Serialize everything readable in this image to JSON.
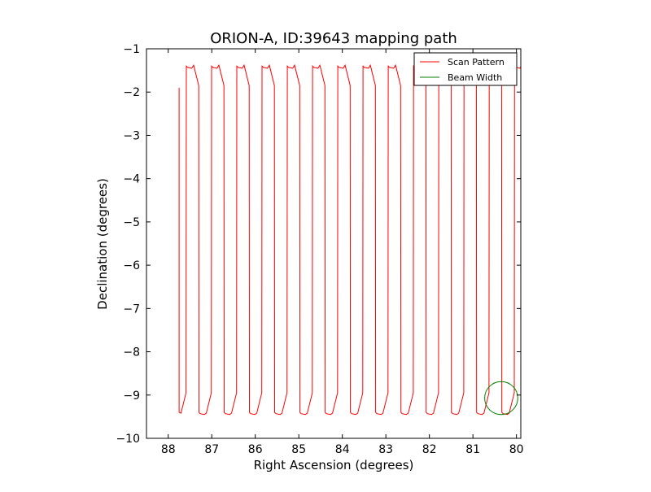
{
  "chart_data": {
    "type": "line",
    "title": "ORION-A, ID:39643 mapping path",
    "xlabel": "Right Ascension (degrees)",
    "ylabel": "Declination (degrees)",
    "xlim": [
      88.5,
      79.9
    ],
    "ylim": [
      -10,
      -1
    ],
    "x_ticks": [
      88,
      87,
      86,
      85,
      84,
      83,
      82,
      81,
      80
    ],
    "y_ticks": [
      -1,
      -2,
      -3,
      -4,
      -5,
      -6,
      -7,
      -8,
      -9,
      -10
    ],
    "x_tick_labels": [
      "88",
      "87",
      "86",
      "85",
      "84",
      "83",
      "82",
      "81",
      "80"
    ],
    "y_tick_labels": [
      "−1",
      "−2",
      "−3",
      "−4",
      "−5",
      "−6",
      "−7",
      "−8",
      "−9",
      "−10"
    ],
    "grid": false,
    "legend_position": "top-right",
    "series": [
      {
        "name": "Scan Pattern",
        "color": "#ff0000",
        "kind": "raster-scan",
        "start": [
          87.75,
          -1.9
        ],
        "legs": 30,
        "ra_step": -0.29,
        "dec_top": -1.4,
        "dec_bottom": -9.4
      },
      {
        "name": "Beam Width",
        "color": "#008000",
        "kind": "circle",
        "center": [
          80.35,
          -9.07
        ],
        "radius": 0.38
      }
    ]
  }
}
